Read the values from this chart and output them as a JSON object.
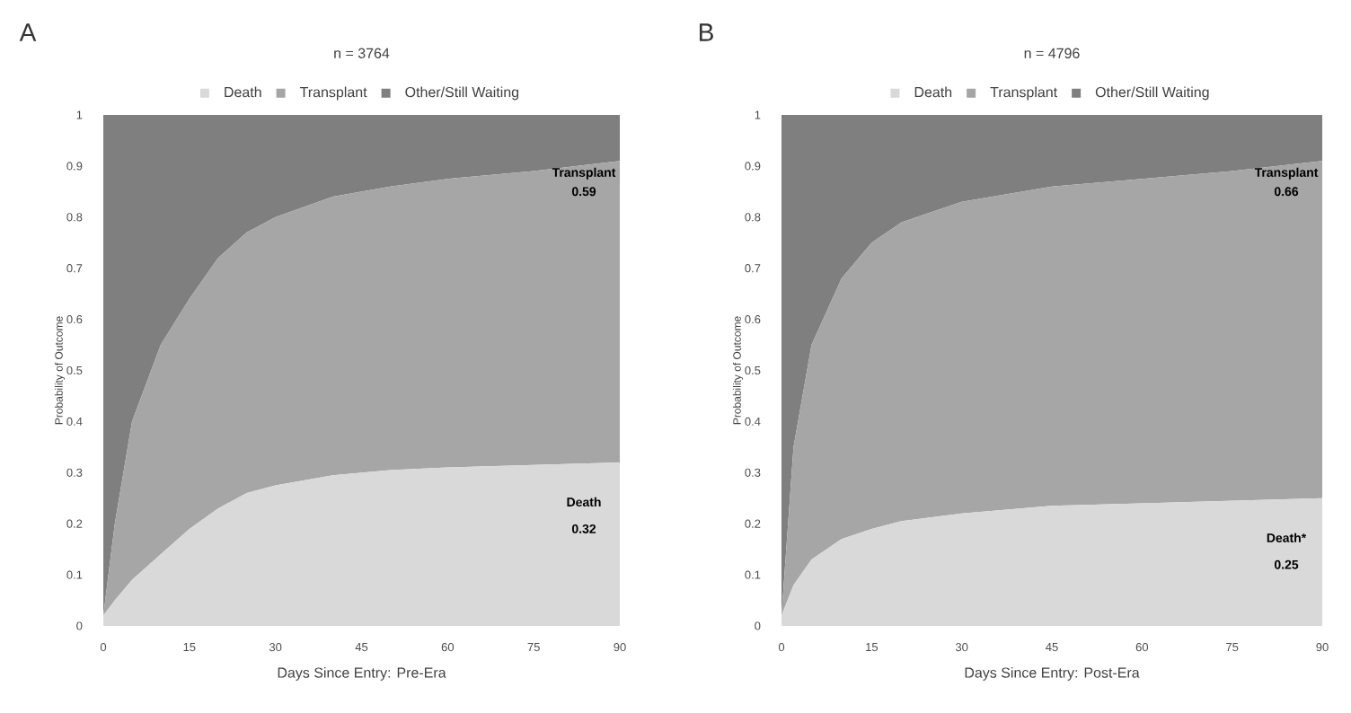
{
  "chart_data": [
    {
      "type": "area",
      "title": "n = 3764",
      "xlabel": "Days Since Entry: Pre-Era",
      "ylabel": "Probability of Outcome",
      "stacked": true,
      "legend": "top",
      "marker": "none",
      "x": [
        0,
        2,
        5,
        10,
        15,
        20,
        25,
        30,
        40,
        50,
        60,
        75,
        90
      ],
      "series": [
        {
          "name": "Death",
          "color": "#d9d9d9",
          "values": [
            0.02,
            0.05,
            0.09,
            0.14,
            0.19,
            0.23,
            0.26,
            0.275,
            0.295,
            0.305,
            0.31,
            0.315,
            0.32
          ]
        },
        {
          "name": "Transplant",
          "color": "#a6a6a6",
          "values": [
            0,
            0.15,
            0.31,
            0.41,
            0.45,
            0.49,
            0.51,
            0.525,
            0.545,
            0.555,
            0.565,
            0.575,
            0.59
          ]
        },
        {
          "name": "Other/Still Waiting",
          "color": "#7f7f7f",
          "values": [
            0.98,
            0.8,
            0.6,
            0.45,
            0.36,
            0.28,
            0.23,
            0.2,
            0.16,
            0.14,
            0.125,
            0.11,
            0.09
          ]
        }
      ],
      "xlim": [
        0,
        90
      ],
      "ylim": [
        0,
        1
      ],
      "xticks": [
        0,
        15,
        30,
        45,
        60,
        75,
        90
      ],
      "yticks": [
        0,
        0.1,
        0.2,
        0.3,
        0.4,
        0.5,
        0.6,
        0.7,
        0.8,
        0.9,
        1
      ],
      "annotations": [
        "A",
        "Transplant",
        "0.59",
        "Death",
        "0.32"
      ]
    },
    {
      "type": "area",
      "title": "n = 4796",
      "xlabel": "Days Since Entry: Post-Era",
      "ylabel": "Probability of Outcome",
      "stacked": true,
      "legend": "top",
      "marker": "none",
      "x": [
        0,
        2,
        5,
        10,
        15,
        20,
        30,
        45,
        60,
        75,
        90
      ],
      "series": [
        {
          "name": "Death",
          "color": "#d9d9d9",
          "values": [
            0.02,
            0.08,
            0.13,
            0.17,
            0.19,
            0.205,
            0.22,
            0.235,
            0.24,
            0.245,
            0.25
          ]
        },
        {
          "name": "Transplant",
          "color": "#a6a6a6",
          "values": [
            0,
            0.27,
            0.42,
            0.51,
            0.56,
            0.585,
            0.61,
            0.625,
            0.635,
            0.645,
            0.66
          ]
        },
        {
          "name": "Other/Still Waiting",
          "color": "#7f7f7f",
          "values": [
            0.98,
            0.65,
            0.45,
            0.32,
            0.25,
            0.21,
            0.17,
            0.14,
            0.125,
            0.11,
            0.09
          ]
        }
      ],
      "xlim": [
        0,
        90
      ],
      "ylim": [
        0,
        1
      ],
      "xticks": [
        0,
        15,
        30,
        45,
        60,
        75,
        90
      ],
      "yticks": [
        0,
        0.1,
        0.2,
        0.3,
        0.4,
        0.5,
        0.6,
        0.7,
        0.8,
        0.9,
        1
      ],
      "annotations": [
        "B",
        "Transplant",
        "0.66",
        "Death*",
        "0.25"
      ]
    }
  ]
}
